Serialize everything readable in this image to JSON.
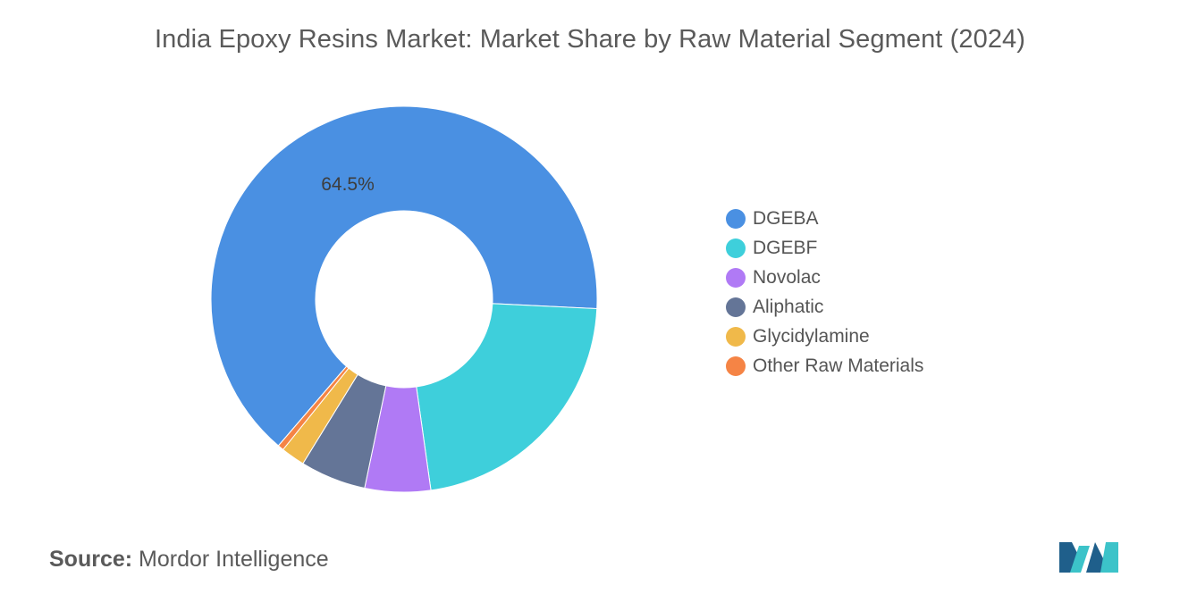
{
  "chart_data": {
    "type": "pie",
    "title": "India Epoxy Resins Market: Market Share by Raw Material Segment (2024)",
    "donut": true,
    "categories": [
      "DGEBA",
      "DGEBF",
      "Novolac",
      "Aliphatic",
      "Glycidylamine",
      "Other Raw Materials"
    ],
    "values": [
      64.5,
      22.0,
      5.5,
      5.5,
      2.0,
      0.5
    ],
    "colors": [
      "#4a90e2",
      "#3ecfdb",
      "#b07af5",
      "#647597",
      "#f0b94a",
      "#f58445"
    ],
    "data_labels": [
      {
        "category": "DGEBA",
        "text": "64.5%"
      }
    ],
    "legend_position": "right"
  },
  "source": {
    "label": "Source:",
    "text": "Mordor Intelligence"
  },
  "logo": {
    "icon": "mordor-intelligence-logo-icon",
    "colors": [
      "#1f5f8b",
      "#3cc3c9"
    ]
  }
}
